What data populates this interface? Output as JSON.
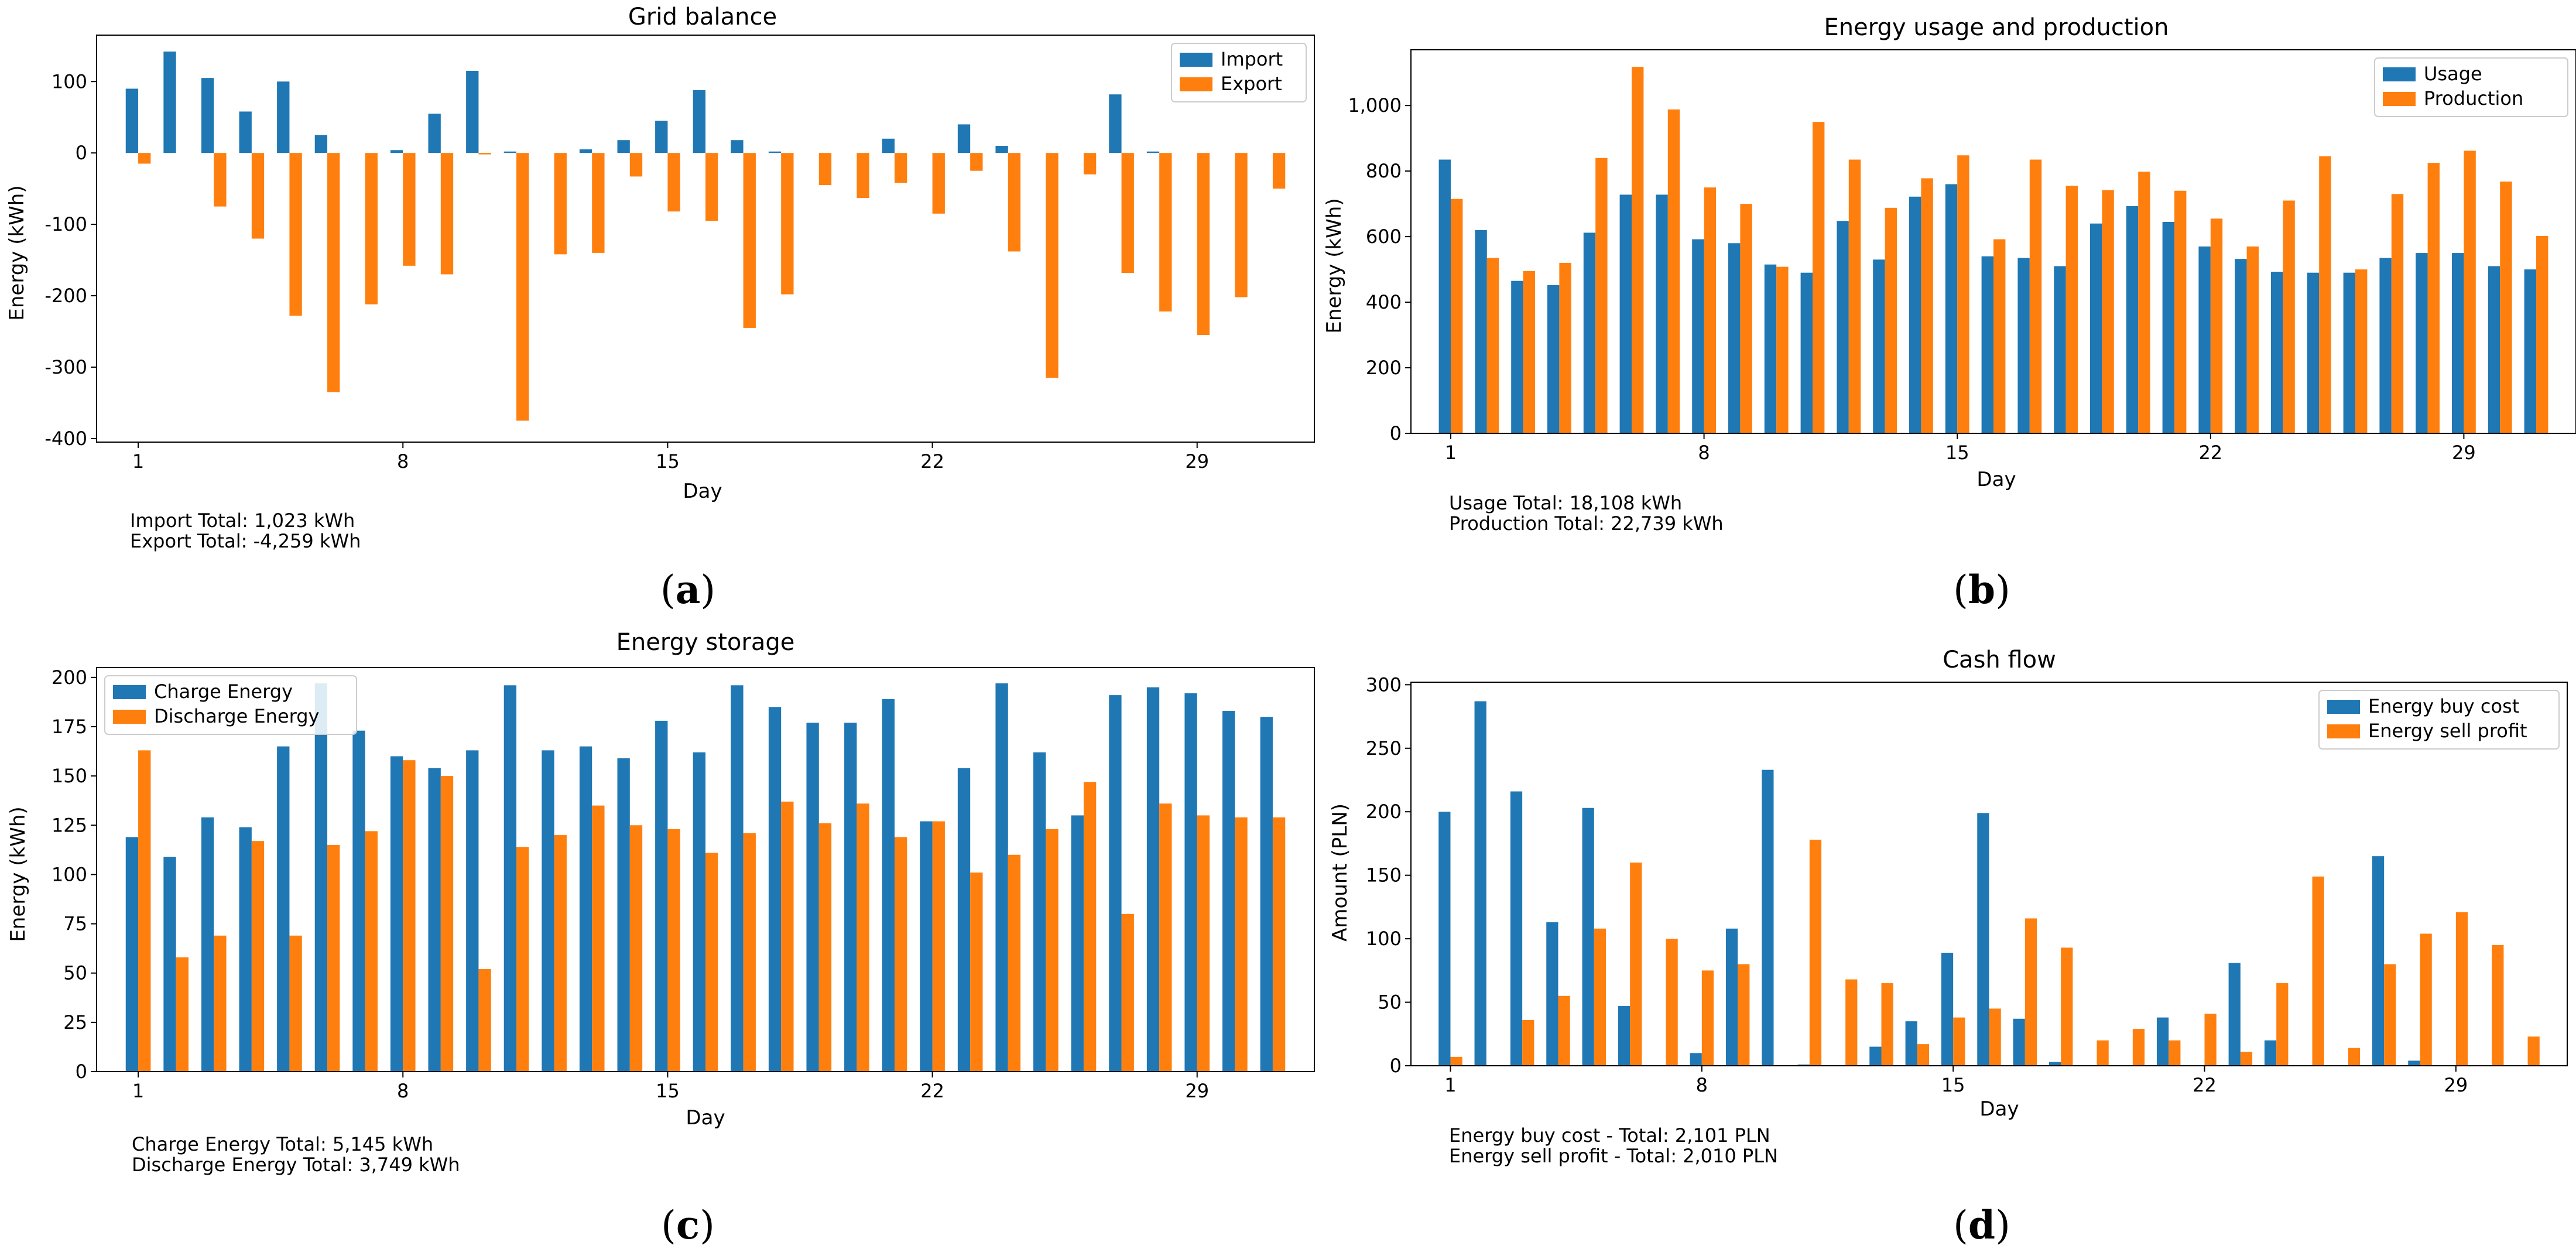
{
  "colors": {
    "series1": "#1f77b4",
    "series2": "#ff7f0e",
    "axis": "#000000",
    "text": "#000000"
  },
  "chart_data": [
    {
      "panel_label": "(a)",
      "panel_letter": "a",
      "type": "bar",
      "title": "Grid balance",
      "xlabel": "Day",
      "ylabel": "Energy (kWh)",
      "x": [
        1,
        2,
        3,
        4,
        5,
        6,
        7,
        8,
        9,
        10,
        11,
        12,
        13,
        14,
        15,
        16,
        17,
        18,
        19,
        20,
        21,
        22,
        23,
        24,
        25,
        26,
        27,
        28,
        29,
        30,
        31
      ],
      "xticks": [
        1,
        8,
        15,
        22,
        29
      ],
      "yticks": [
        100,
        0,
        -100,
        -200,
        -300,
        -400
      ],
      "ytick_labels": [
        "100",
        "0",
        "-100",
        "-200",
        "-300",
        "-400"
      ],
      "ylim": [
        -405,
        165
      ],
      "xlim": [
        -0.1,
        32.1
      ],
      "legend": "top-right",
      "series": [
        {
          "name": "Import",
          "values": [
            90,
            142,
            105,
            58,
            100,
            25,
            0,
            4,
            55,
            115,
            2,
            0,
            5,
            18,
            45,
            88,
            18,
            2,
            0,
            0,
            20,
            0,
            40,
            10,
            0,
            0,
            82,
            2,
            0,
            0,
            0
          ]
        },
        {
          "name": "Export",
          "values": [
            -15,
            0,
            -75,
            -120,
            -228,
            -335,
            -212,
            -158,
            -170,
            -2,
            -375,
            -142,
            -140,
            -33,
            -82,
            -95,
            -245,
            -198,
            -45,
            -63,
            -42,
            -85,
            -25,
            -138,
            -315,
            -30,
            -168,
            -222,
            -255,
            -202,
            -50
          ]
        }
      ],
      "footer": [
        "Import Total: 1,023 kWh",
        "Export Total: -4,259 kWh"
      ]
    },
    {
      "panel_label": "(b)",
      "panel_letter": "b",
      "type": "bar",
      "title": "Energy usage and production",
      "xlabel": "Day",
      "ylabel": "Energy (kWh)",
      "x": [
        1,
        2,
        3,
        4,
        5,
        6,
        7,
        8,
        9,
        10,
        11,
        12,
        13,
        14,
        15,
        16,
        17,
        18,
        19,
        20,
        21,
        22,
        23,
        24,
        25,
        26,
        27,
        28,
        29,
        30,
        31
      ],
      "xticks": [
        1,
        8,
        15,
        22,
        29
      ],
      "yticks": [
        0,
        200,
        400,
        600,
        800,
        1000
      ],
      "ytick_labels": [
        "0",
        "200",
        "400",
        "600",
        "800",
        "1,000"
      ],
      "ylim": [
        0,
        1170
      ],
      "xlim": [
        -0.1,
        32.1
      ],
      "legend": "top-right",
      "series": [
        {
          "name": "Usage",
          "values": [
            835,
            620,
            465,
            452,
            612,
            728,
            728,
            592,
            580,
            515,
            490,
            648,
            530,
            722,
            760,
            540,
            535,
            510,
            640,
            693,
            645,
            570,
            532,
            493,
            490,
            490,
            535,
            550,
            550,
            510,
            500
          ]
        },
        {
          "name": "Production",
          "values": [
            715,
            535,
            495,
            520,
            840,
            1118,
            988,
            750,
            700,
            508,
            950,
            835,
            688,
            778,
            848,
            592,
            835,
            755,
            742,
            798,
            740,
            655,
            570,
            710,
            845,
            500,
            730,
            825,
            862,
            768,
            602
          ]
        }
      ],
      "footer": [
        "Usage Total: 18,108 kWh",
        "Production Total: 22,739 kWh"
      ]
    },
    {
      "panel_label": "(c)",
      "panel_letter": "c",
      "type": "bar",
      "title": "Energy storage",
      "xlabel": "Day",
      "ylabel": "Energy (kWh)",
      "x": [
        1,
        2,
        3,
        4,
        5,
        6,
        7,
        8,
        9,
        10,
        11,
        12,
        13,
        14,
        15,
        16,
        17,
        18,
        19,
        20,
        21,
        22,
        23,
        24,
        25,
        26,
        27,
        28,
        29,
        30,
        31
      ],
      "xticks": [
        1,
        8,
        15,
        22,
        29
      ],
      "yticks": [
        0,
        25,
        50,
        75,
        100,
        125,
        150,
        175,
        200
      ],
      "ytick_labels": [
        "0",
        "25",
        "50",
        "75",
        "100",
        "125",
        "150",
        "175",
        "200"
      ],
      "ylim": [
        0,
        205
      ],
      "xlim": [
        -0.1,
        32.1
      ],
      "legend": "top-left",
      "series": [
        {
          "name": "Charge Energy",
          "values": [
            119,
            109,
            129,
            124,
            165,
            197,
            173,
            160,
            154,
            163,
            196,
            163,
            165,
            159,
            178,
            162,
            196,
            185,
            177,
            177,
            189,
            127,
            154,
            197,
            162,
            130,
            191,
            195,
            192,
            183,
            180
          ]
        },
        {
          "name": "Discharge Energy",
          "values": [
            163,
            58,
            69,
            117,
            69,
            115,
            122,
            158,
            150,
            52,
            114,
            120,
            135,
            125,
            123,
            111,
            121,
            137,
            126,
            136,
            119,
            127,
            101,
            110,
            123,
            147,
            80,
            136,
            130,
            129,
            129
          ]
        }
      ],
      "footer": [
        "Charge Energy Total: 5,145 kWh",
        "Discharge Energy Total: 3,749 kWh"
      ]
    },
    {
      "panel_label": "(d)",
      "panel_letter": "d",
      "type": "bar",
      "title": "Cash flow",
      "xlabel": "Day",
      "ylabel": "Amount (PLN)",
      "x": [
        1,
        2,
        3,
        4,
        5,
        6,
        7,
        8,
        9,
        10,
        11,
        12,
        13,
        14,
        15,
        16,
        17,
        18,
        19,
        20,
        21,
        22,
        23,
        24,
        25,
        26,
        27,
        28,
        29,
        30,
        31
      ],
      "xticks": [
        1,
        8,
        15,
        22,
        29
      ],
      "yticks": [
        0,
        50,
        100,
        150,
        200,
        250,
        300
      ],
      "ytick_labels": [
        "0",
        "50",
        "100",
        "150",
        "200",
        "250",
        "300"
      ],
      "ylim": [
        0,
        302
      ],
      "xlim": [
        -0.1,
        32.1
      ],
      "legend": "top-right",
      "series": [
        {
          "name": "Energy buy cost",
          "values": [
            200,
            287,
            216,
            113,
            203,
            47,
            0,
            10,
            108,
            233,
            1,
            0,
            15,
            35,
            89,
            199,
            37,
            3,
            0,
            0,
            38,
            0,
            81,
            20,
            0,
            0,
            165,
            4,
            0,
            0,
            0
          ]
        },
        {
          "name": "Energy sell profit",
          "values": [
            7,
            0,
            36,
            55,
            108,
            160,
            100,
            75,
            80,
            0,
            178,
            68,
            65,
            17,
            38,
            45,
            116,
            93,
            20,
            29,
            20,
            41,
            11,
            65,
            149,
            14,
            80,
            104,
            121,
            95,
            23
          ]
        }
      ],
      "footer": [
        "Energy buy cost - Total: 2,101 PLN",
        "Energy sell profit - Total: 2,010 PLN"
      ]
    }
  ]
}
